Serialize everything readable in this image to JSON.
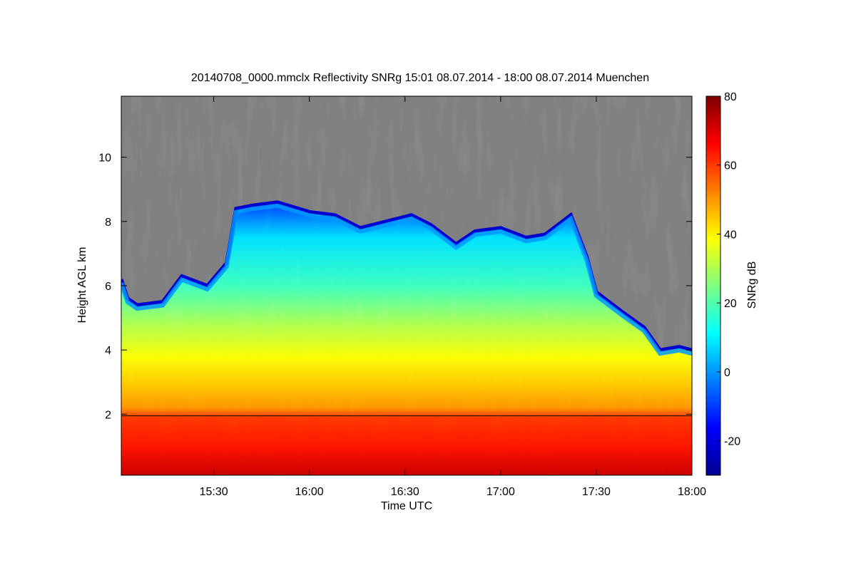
{
  "chart_data": {
    "type": "heatmap",
    "title": "20140708_0000.mmclx Reflectivity SNRg   15:01 08.07.2014 - 18:00 08.07.2014 Muenchen",
    "xlabel": "Time UTC",
    "ylabel": "Height AGL km",
    "colorbar_label": "SNRg dB",
    "x_ticks": [
      "15:30",
      "16:00",
      "16:30",
      "17:00",
      "17:30",
      "18:00"
    ],
    "x_tick_minutes": [
      30,
      60,
      90,
      120,
      150,
      180
    ],
    "xlim": [
      "15:01",
      "18:00"
    ],
    "xlim_minutes": [
      1,
      180
    ],
    "y_ticks": [
      2,
      4,
      6,
      8,
      10
    ],
    "ylim": [
      0.1,
      11.9
    ],
    "colorbar_ticks": [
      -20,
      0,
      20,
      40,
      60,
      80
    ],
    "colorbar_range": [
      -30,
      80
    ],
    "nodata_color": "#808080",
    "colormap": [
      "#00008f",
      "#0000ff",
      "#007fff",
      "#00ffff",
      "#7fff7f",
      "#ffff00",
      "#ff7f00",
      "#ff0000",
      "#7f0000"
    ],
    "boundary_line_height_km": 1.95,
    "echo_top_km": [
      {
        "t": 1,
        "h": 6.2
      },
      {
        "t": 3,
        "h": 5.6
      },
      {
        "t": 6,
        "h": 5.4
      },
      {
        "t": 14,
        "h": 5.5
      },
      {
        "t": 20,
        "h": 6.3
      },
      {
        "t": 28,
        "h": 6.0
      },
      {
        "t": 34,
        "h": 6.7
      },
      {
        "t": 37,
        "h": 8.4
      },
      {
        "t": 42,
        "h": 8.5
      },
      {
        "t": 50,
        "h": 8.6
      },
      {
        "t": 60,
        "h": 8.3
      },
      {
        "t": 68,
        "h": 8.2
      },
      {
        "t": 76,
        "h": 7.8
      },
      {
        "t": 84,
        "h": 8.0
      },
      {
        "t": 92,
        "h": 8.2
      },
      {
        "t": 98,
        "h": 7.9
      },
      {
        "t": 106,
        "h": 7.3
      },
      {
        "t": 112,
        "h": 7.7
      },
      {
        "t": 120,
        "h": 7.8
      },
      {
        "t": 128,
        "h": 7.5
      },
      {
        "t": 134,
        "h": 7.6
      },
      {
        "t": 142,
        "h": 8.2
      },
      {
        "t": 147,
        "h": 6.9
      },
      {
        "t": 150,
        "h": 5.8
      },
      {
        "t": 158,
        "h": 5.2
      },
      {
        "t": 165,
        "h": 4.7
      },
      {
        "t": 170,
        "h": 4.0
      },
      {
        "t": 176,
        "h": 4.1
      },
      {
        "t": 180,
        "h": 4.0
      }
    ],
    "snr_profile": [
      {
        "h": 0.1,
        "v": 72
      },
      {
        "h": 1.0,
        "v": 64
      },
      {
        "h": 1.9,
        "v": 60
      },
      {
        "h": 2.2,
        "v": 50
      },
      {
        "h": 3.0,
        "v": 44
      },
      {
        "h": 3.8,
        "v": 38
      },
      {
        "h": 4.8,
        "v": 30
      },
      {
        "h": 6.0,
        "v": 18
      },
      {
        "h": 7.5,
        "v": 8
      },
      {
        "h": 8.6,
        "v": -10
      }
    ]
  }
}
